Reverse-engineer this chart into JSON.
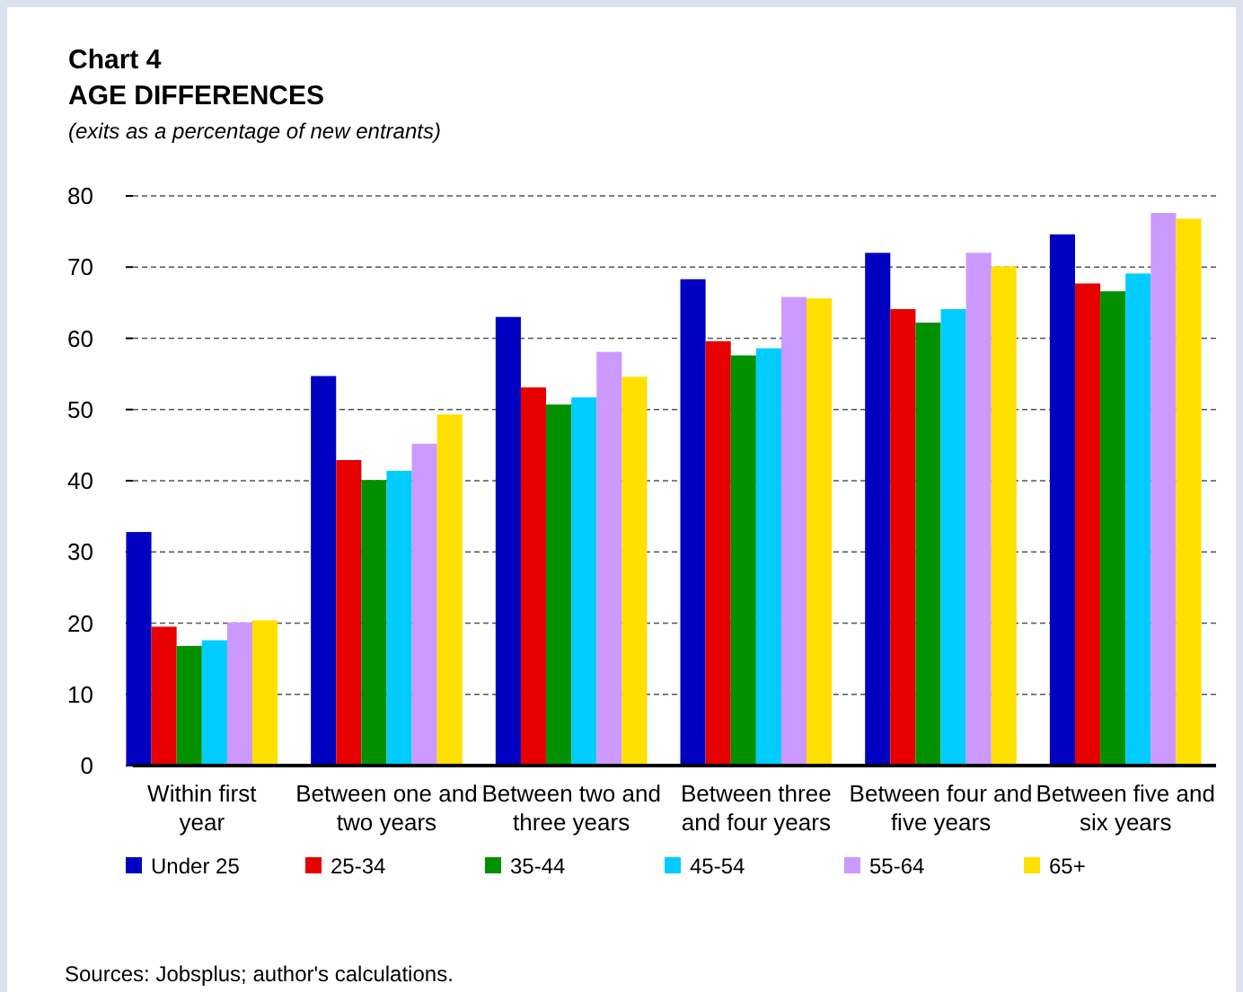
{
  "chart_data": {
    "type": "bar",
    "title": "Chart 4",
    "subtitle": "AGE DIFFERENCES",
    "ylabel": "(exits as a percentage of new entrants)",
    "categories": [
      "Within first year",
      "Between one and two years",
      "Between two and three years",
      "Between three and four years",
      "Between four and five years",
      "Between five and six years"
    ],
    "series": [
      {
        "name": "Under 25",
        "color": "#0000c0",
        "values": [
          32.8,
          54.7,
          63,
          68.3,
          72,
          74.6
        ]
      },
      {
        "name": "25-34",
        "color": "#e60000",
        "values": [
          19.5,
          42.9,
          53.1,
          59.6,
          64.1,
          67.7
        ]
      },
      {
        "name": "35-44",
        "color": "#009000",
        "values": [
          16.8,
          40.1,
          50.7,
          57.6,
          62.2,
          66.6
        ]
      },
      {
        "name": "45-54",
        "color": "#00ccff",
        "values": [
          17.6,
          41.4,
          51.7,
          58.6,
          64.1,
          69.1
        ]
      },
      {
        "name": "55-64",
        "color": "#cc99ff",
        "values": [
          20.1,
          45.2,
          58.1,
          65.8,
          72,
          77.6
        ]
      },
      {
        "name": "65+",
        "color": "#ffe000",
        "values": [
          20.4,
          49.3,
          54.6,
          65.6,
          70.1,
          76.8
        ]
      }
    ],
    "ylim": [
      0,
      80
    ],
    "yticks": [
      0,
      10,
      20,
      30,
      40,
      50,
      60,
      70,
      80
    ],
    "grid": "y",
    "legend": "bottom",
    "annotations": [
      "Sources: Jobsplus; author's calculations."
    ]
  }
}
